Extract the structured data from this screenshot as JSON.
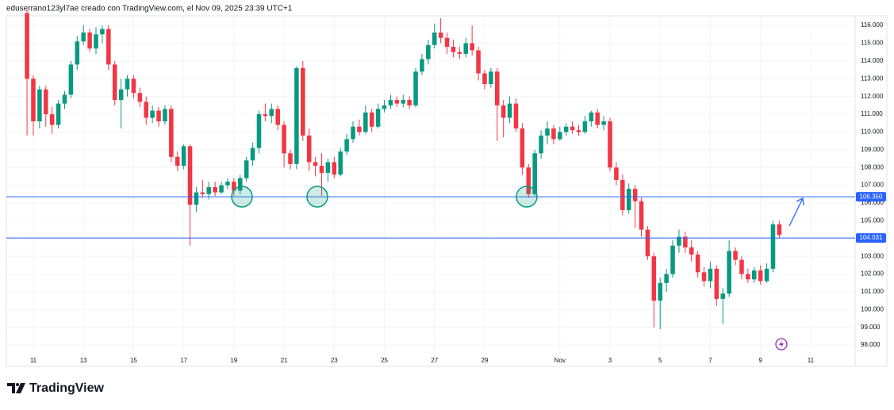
{
  "header": "eduserrano123yl7ae creado con TradingView.com, el Nov 09, 2025 23:39 UTC+1",
  "chart_data": {
    "type": "candlestick",
    "up_color": "#089981",
    "down_color": "#f23645",
    "open": [
      116.7,
      113.0,
      110.6,
      112.4,
      111.0,
      110.4,
      111.6,
      112.1,
      113.8,
      115.1,
      115.6,
      114.7,
      115.5,
      115.8,
      113.8,
      111.8,
      112.4,
      113.0,
      112.2,
      111.7,
      110.8,
      111.2,
      110.6,
      111.3,
      108.6,
      108.1,
      109.2,
      105.9,
      106.6,
      106.5,
      106.9,
      106.6,
      107.0,
      107.2,
      106.7,
      107.4,
      108.4,
      109.1,
      111.0,
      110.9,
      111.3,
      110.4,
      108.8,
      108.2,
      113.6,
      109.8,
      108.3,
      108.1,
      107.7,
      108.3,
      107.6,
      108.9,
      109.6,
      110.3,
      110.0,
      111.1,
      110.3,
      111.3,
      111.5,
      111.8,
      111.6,
      111.8,
      111.5,
      113.4,
      114.1,
      114.9,
      115.6,
      115.3,
      114.8,
      114.5,
      114.4,
      115.0,
      114.6,
      113.3,
      112.7,
      113.4,
      111.5,
      110.8,
      111.6,
      110.2,
      108.0,
      106.5,
      108.8,
      109.8,
      110.2,
      109.6,
      110.0,
      110.3,
      110.1,
      110.0,
      110.6,
      111.1,
      110.4,
      110.6,
      108.0,
      107.3,
      105.6,
      106.8,
      106.1,
      104.5,
      103.0,
      100.5,
      101.5,
      102.0,
      103.6,
      104.1,
      103.5,
      103.1,
      102.1,
      101.6,
      102.3,
      100.6,
      100.9,
      103.3,
      102.8,
      102.0,
      101.7,
      102.2,
      101.6,
      102.3,
      104.8
    ],
    "high": [
      116.9,
      113.2,
      112.6,
      112.6,
      111.4,
      111.8,
      112.3,
      114.0,
      115.4,
      116.0,
      115.8,
      115.9,
      116.0,
      116.0,
      114.0,
      113.0,
      113.2,
      113.2,
      112.5,
      112.0,
      111.5,
      111.4,
      111.5,
      111.5,
      108.9,
      109.3,
      109.3,
      106.9,
      107.3,
      107.2,
      107.2,
      107.2,
      107.4,
      107.4,
      107.6,
      108.6,
      109.4,
      111.2,
      111.6,
      111.6,
      111.5,
      110.6,
      109.0,
      113.7,
      114.0,
      110.2,
      108.6,
      108.8,
      108.5,
      108.6,
      109.1,
      109.9,
      110.6,
      110.7,
      111.5,
      111.3,
      111.6,
      111.8,
      112.1,
      112.0,
      112.1,
      112.0,
      113.6,
      114.4,
      115.2,
      116.1,
      116.4,
      115.6,
      115.2,
      114.8,
      115.3,
      116.0,
      114.8,
      113.5,
      113.6,
      113.6,
      111.8,
      112.0,
      111.9,
      110.5,
      108.2,
      109.0,
      110.1,
      110.6,
      110.4,
      110.3,
      110.5,
      110.6,
      110.4,
      110.9,
      111.2,
      111.3,
      110.9,
      110.8,
      108.3,
      107.6,
      107.1,
      107.0,
      106.3,
      104.7,
      103.2,
      101.8,
      102.3,
      103.9,
      104.5,
      104.4,
      103.9,
      103.3,
      102.4,
      102.7,
      102.5,
      101.2,
      103.9,
      103.5,
      103.0,
      102.3,
      102.4,
      102.5,
      102.6,
      105.0,
      105.0
    ],
    "low": [
      109.8,
      109.8,
      110.2,
      110.3,
      109.9,
      110.2,
      111.3,
      111.9,
      113.5,
      114.9,
      114.5,
      114.4,
      115.0,
      113.5,
      111.5,
      110.2,
      112.0,
      111.9,
      111.4,
      110.4,
      110.5,
      110.3,
      110.4,
      108.3,
      107.8,
      107.9,
      103.6,
      105.5,
      106.3,
      106.2,
      106.4,
      106.5,
      106.8,
      106.4,
      106.5,
      107.2,
      108.1,
      108.8,
      110.6,
      110.5,
      110.1,
      108.0,
      107.9,
      107.9,
      109.5,
      107.8,
      107.5,
      106.4,
      107.2,
      107.4,
      107.5,
      108.7,
      109.4,
      109.8,
      109.9,
      110.0,
      110.2,
      111.1,
      111.3,
      111.4,
      111.4,
      111.3,
      111.4,
      113.2,
      113.8,
      114.7,
      115.0,
      114.4,
      114.2,
      114.1,
      114.2,
      114.3,
      112.9,
      112.4,
      112.5,
      109.5,
      109.7,
      110.5,
      110.0,
      107.6,
      106.3,
      106.4,
      108.5,
      109.3,
      109.3,
      109.5,
      109.8,
      109.9,
      109.8,
      109.9,
      110.3,
      110.2,
      110.1,
      107.8,
      107.0,
      105.3,
      105.4,
      104.6,
      104.1,
      102.8,
      99.0,
      98.9,
      101.0,
      101.8,
      103.2,
      103.2,
      102.7,
      101.8,
      101.3,
      101.2,
      100.2,
      99.2,
      100.7,
      102.5,
      101.7,
      101.5,
      101.5,
      101.4,
      101.5,
      102.1,
      104.0
    ],
    "close": [
      113.0,
      110.6,
      112.4,
      111.0,
      110.4,
      111.6,
      112.1,
      113.8,
      115.1,
      115.6,
      114.7,
      115.5,
      115.8,
      113.8,
      111.8,
      112.4,
      113.0,
      112.2,
      111.7,
      110.8,
      111.2,
      110.6,
      111.3,
      108.6,
      108.1,
      109.2,
      105.9,
      106.6,
      106.5,
      106.9,
      106.6,
      107.0,
      107.2,
      106.7,
      107.4,
      108.4,
      109.1,
      111.0,
      110.9,
      111.3,
      110.4,
      108.8,
      108.2,
      113.6,
      109.8,
      108.3,
      108.1,
      107.7,
      108.3,
      107.6,
      108.9,
      109.6,
      110.3,
      110.0,
      111.1,
      110.3,
      111.3,
      111.5,
      111.8,
      111.6,
      111.8,
      111.5,
      113.4,
      114.1,
      114.9,
      115.6,
      115.3,
      114.8,
      114.5,
      114.4,
      115.0,
      114.6,
      113.3,
      112.7,
      113.4,
      111.5,
      110.8,
      111.6,
      110.2,
      108.0,
      106.5,
      108.8,
      109.8,
      110.2,
      109.6,
      110.0,
      110.3,
      110.1,
      110.0,
      110.6,
      111.1,
      110.4,
      110.6,
      108.0,
      107.3,
      105.6,
      106.8,
      106.1,
      104.5,
      103.0,
      100.5,
      101.5,
      102.0,
      103.6,
      104.1,
      103.5,
      103.1,
      102.1,
      101.6,
      102.3,
      100.6,
      100.9,
      103.3,
      102.8,
      102.0,
      101.7,
      102.2,
      101.6,
      102.3,
      104.8,
      104.2
    ],
    "xlim": [
      -3.3,
      132.1
    ],
    "xticks": [
      {
        "value": 1,
        "label": "11"
      },
      {
        "value": 9,
        "label": "13"
      },
      {
        "value": 17,
        "label": "15"
      },
      {
        "value": 25,
        "label": "17"
      },
      {
        "value": 33,
        "label": "19"
      },
      {
        "value": 41,
        "label": "21"
      },
      {
        "value": 49,
        "label": "23"
      },
      {
        "value": 57,
        "label": "25"
      },
      {
        "value": 65,
        "label": "27"
      },
      {
        "value": 73,
        "label": "29"
      },
      {
        "value": 85,
        "label": "Nov"
      },
      {
        "value": 93,
        "label": "3"
      },
      {
        "value": 101,
        "label": "5"
      },
      {
        "value": 109,
        "label": "7"
      },
      {
        "value": 117,
        "label": "9"
      },
      {
        "value": 125,
        "label": "11"
      }
    ],
    "ylim": [
      96.8,
      116.54
    ],
    "yticks": [
      {
        "value": 98,
        "label": "98.000"
      },
      {
        "value": 99,
        "label": "99.000"
      },
      {
        "value": 100,
        "label": "100.000"
      },
      {
        "value": 101,
        "label": "101.000"
      },
      {
        "value": 102,
        "label": "102.000"
      },
      {
        "value": 103,
        "label": "103.000"
      },
      {
        "value": 104,
        "label": "104.000"
      },
      {
        "value": 105,
        "label": "105.000"
      },
      {
        "value": 106,
        "label": "106.000"
      },
      {
        "value": 107,
        "label": "107.000"
      },
      {
        "value": 108,
        "label": "108.000"
      },
      {
        "value": 109,
        "label": "109.000"
      },
      {
        "value": 110,
        "label": "110.000"
      },
      {
        "value": 111,
        "label": "111.000"
      },
      {
        "value": 112,
        "label": "112.000"
      },
      {
        "value": 113,
        "label": "113.000"
      },
      {
        "value": 114,
        "label": "114.000"
      },
      {
        "value": 115,
        "label": "115.000"
      },
      {
        "value": 116,
        "label": "116.000"
      }
    ],
    "hlines": [
      {
        "value": 106.35,
        "label": "106.350",
        "color": "#2962ff"
      },
      {
        "value": 104.031,
        "label": "104.031",
        "color": "#2962ff"
      }
    ]
  },
  "footer": {
    "brand": "TradingView"
  }
}
